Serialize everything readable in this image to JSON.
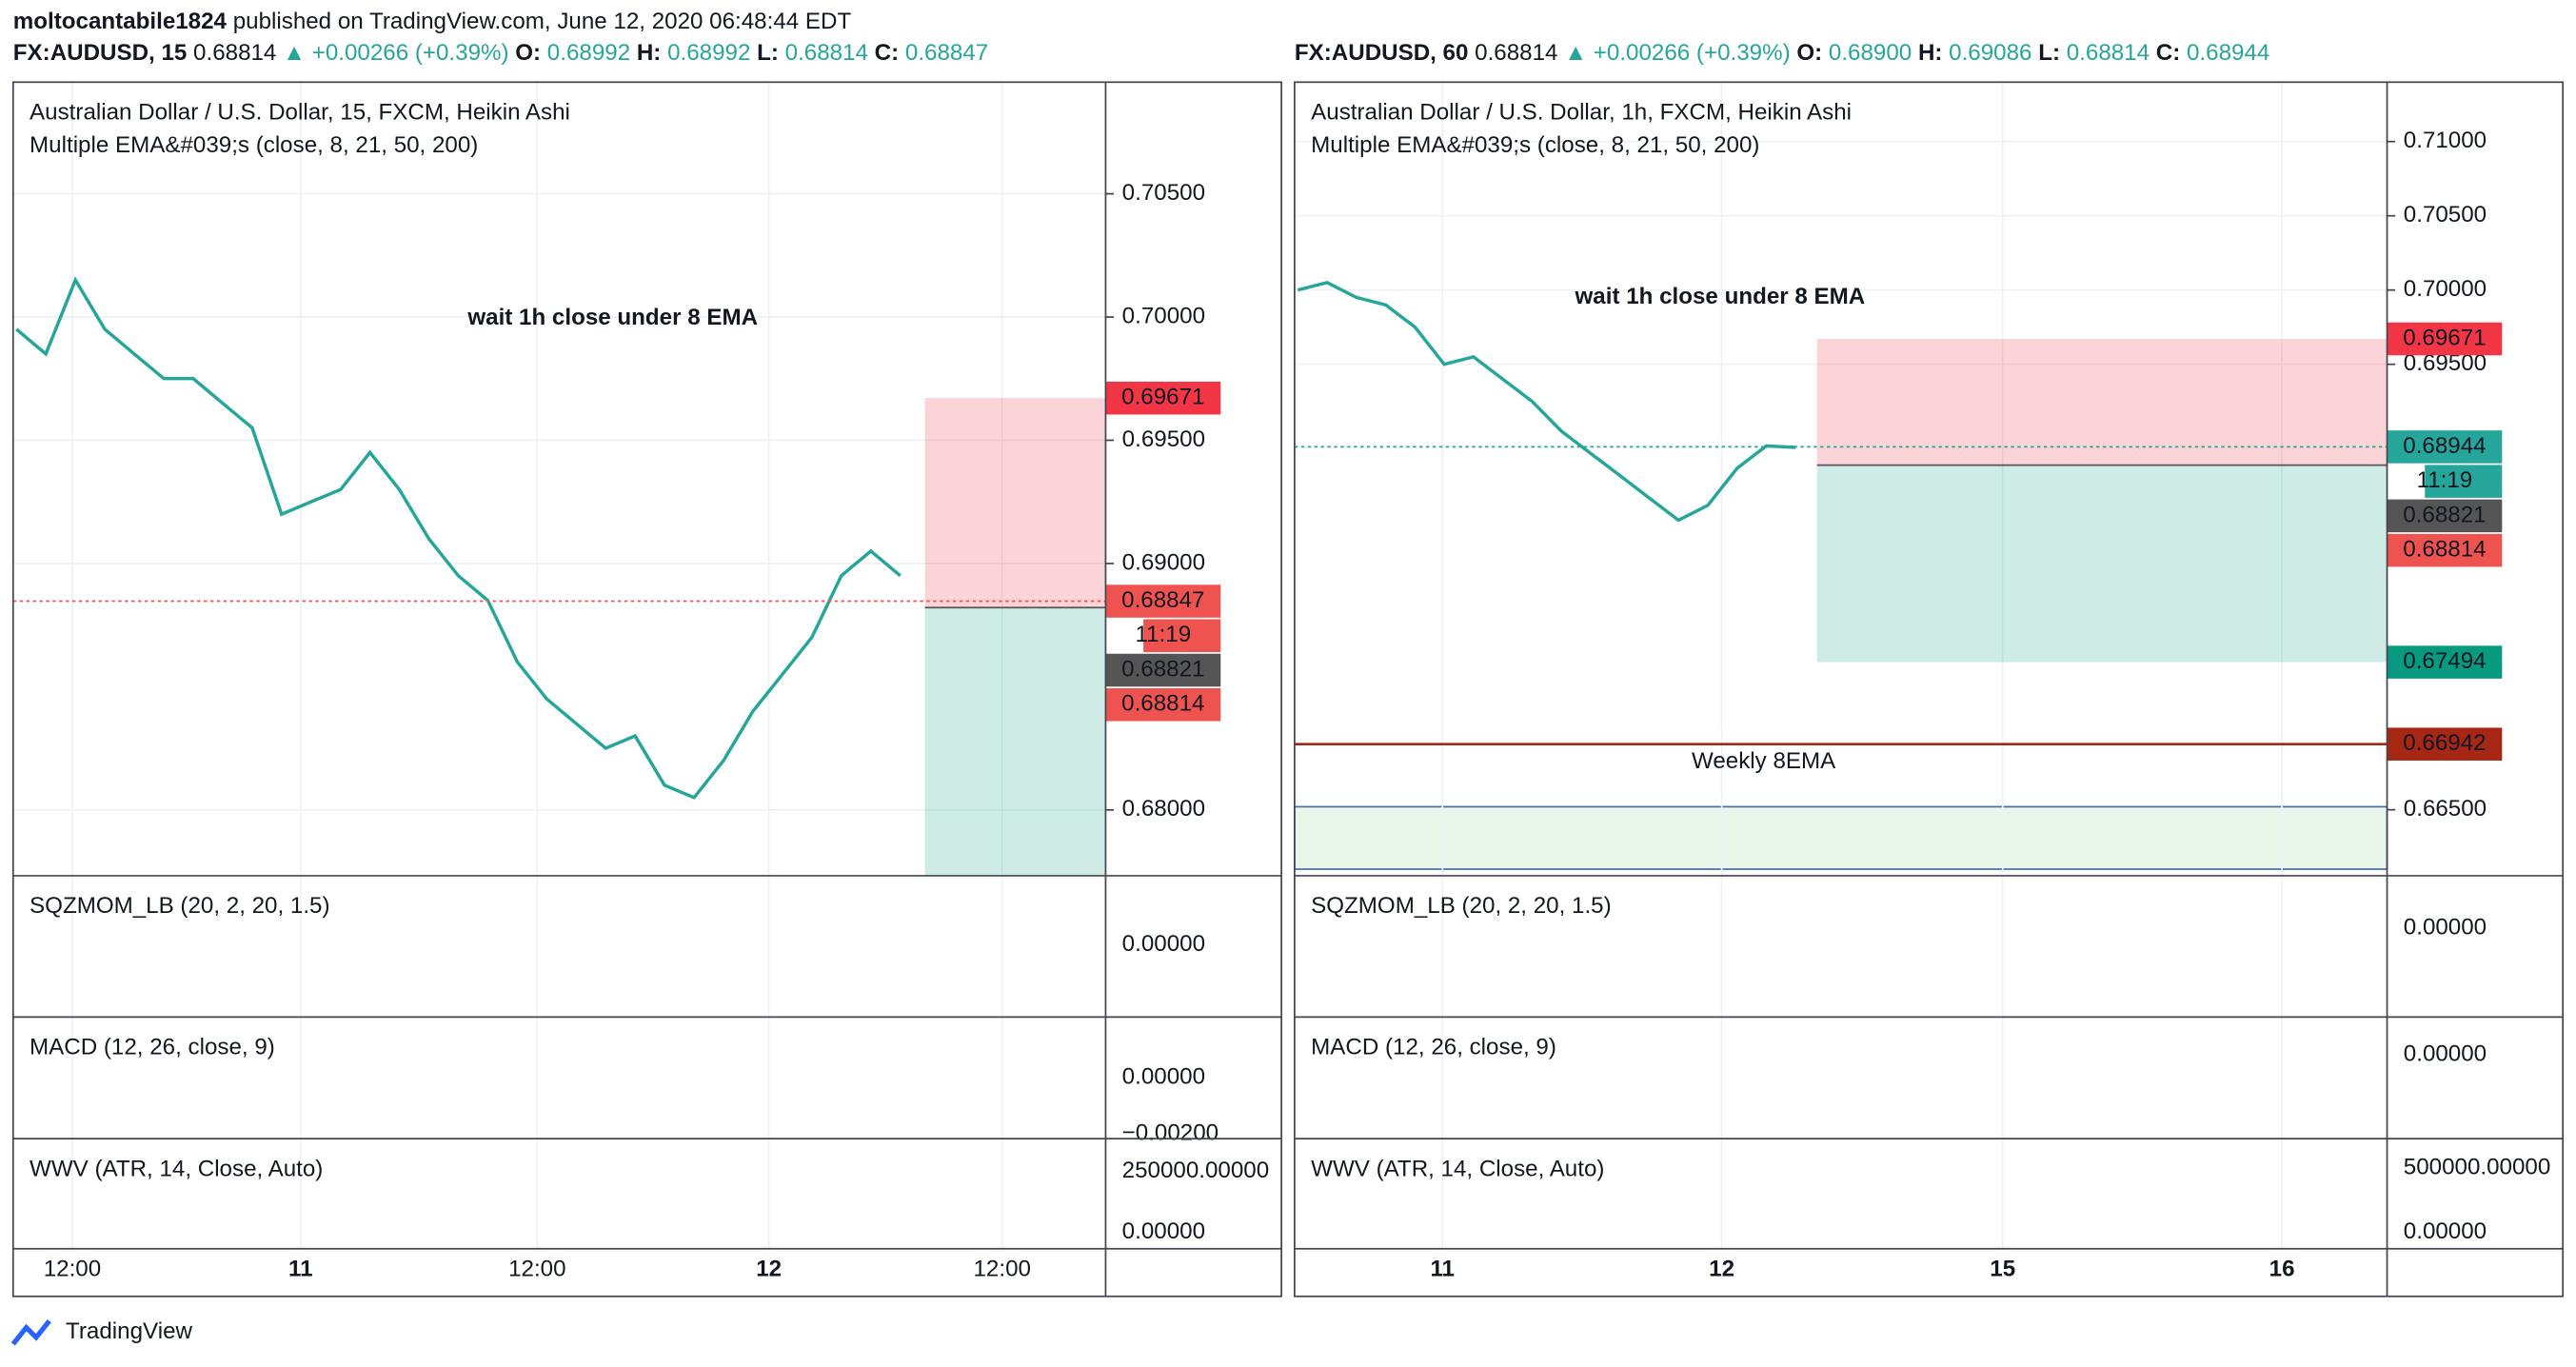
{
  "header": {
    "author": "moltocantabile1824",
    "published": "published on TradingView.com, June 12, 2020 06:48:44 EDT"
  },
  "footer": "TradingView",
  "chart_data": [
    {
      "type": "line",
      "quote": {
        "symbol": "FX:AUDUSD, 15",
        "last": "0.68814",
        "change": "▲ +0.00266 (+0.39%)",
        "ohlc": [
          {
            "key": "O:",
            "value": "0.68992"
          },
          {
            "key": "H:",
            "value": "0.68992"
          },
          {
            "key": "L:",
            "value": "0.68814"
          },
          {
            "key": "C:",
            "value": "0.68847"
          }
        ]
      },
      "title": "Australian Dollar / U.S. Dollar, 15, FXCM, Heikin Ashi",
      "subtitle": "Multiple EMA&#039;s (close, 8, 21, 50, 200)",
      "annotation": "wait 1h close under 8 EMA",
      "color": "#26a69a",
      "values": [
        0.6995,
        0.6985,
        0.7015,
        0.6995,
        0.6985,
        0.6975,
        0.6975,
        0.6965,
        0.6955,
        0.692,
        0.6925,
        0.693,
        0.6945,
        0.693,
        0.691,
        0.6895,
        0.6885,
        0.686,
        0.6845,
        0.6835,
        0.6825,
        0.683,
        0.681,
        0.6805,
        0.682,
        0.684,
        0.6855,
        0.687,
        0.6895,
        0.6905,
        0.6895
      ],
      "ylim": [
        0.67733,
        0.70953
      ],
      "yticks": [
        {
          "value": 0.705,
          "label": "0.70500"
        },
        {
          "value": 0.7,
          "label": "0.70000"
        },
        {
          "value": 0.695,
          "label": "0.69500"
        },
        {
          "value": 0.69,
          "label": "0.69000"
        },
        {
          "value": 0.68,
          "label": "0.68000"
        }
      ],
      "position": {
        "stop": 0.69671,
        "entry": 0.68821
      },
      "price_labels": [
        {
          "value": 0.69671,
          "label": "0.69671",
          "color": "#f23645"
        },
        {
          "value": 0.68847,
          "label": "0.68847",
          "color": "#ef5350"
        },
        {
          "label": "11:19",
          "color": "#ef5350"
        },
        {
          "value": 0.68821,
          "label": "0.68821",
          "color": "#555555"
        },
        {
          "value": 0.68814,
          "label": "0.68814",
          "color": "#ef5350"
        }
      ],
      "xtick_labels": [
        "12:00",
        "11",
        "12:00",
        "12",
        "12:00"
      ],
      "indicators": [
        {
          "label": "SQZMOM_LB (20, 2, 20, 1.5)",
          "ticks": [
            {
              "value": 0,
              "label": "0.00000"
            }
          ]
        },
        {
          "label": "MACD (12, 26, close, 9)",
          "ticks": [
            {
              "value": 0,
              "label": "0.00000"
            },
            {
              "value": -0.002,
              "label": "−0.00200"
            }
          ]
        },
        {
          "label": "WWV (ATR, 14, Close, Auto)",
          "ticks": [
            {
              "value": 250000,
              "label": "250000.00000"
            },
            {
              "value": 0,
              "label": "0.00000"
            }
          ]
        }
      ]
    },
    {
      "type": "line",
      "quote": {
        "symbol": "FX:AUDUSD, 60",
        "last": "0.68814",
        "change": "▲ +0.00266 (+0.39%)",
        "ohlc": [
          {
            "key": "O:",
            "value": "0.68900"
          },
          {
            "key": "H:",
            "value": "0.69086"
          },
          {
            "key": "L:",
            "value": "0.68814"
          },
          {
            "key": "C:",
            "value": "0.68944"
          }
        ]
      },
      "title": "Australian Dollar / U.S. Dollar, 1h, FXCM, Heikin Ashi",
      "subtitle": "Multiple EMA&#039;s (close, 8, 21, 50, 200)",
      "annotation": "wait 1h close under 8 EMA",
      "level_label": "Weekly 8EMA",
      "color": "#26a69a",
      "values": [
        0.7,
        0.7005,
        0.6995,
        0.699,
        0.6975,
        0.695,
        0.6955,
        0.694,
        0.6925,
        0.6905,
        0.689,
        0.6875,
        0.686,
        0.6845,
        0.6855,
        0.688,
        0.6895,
        0.6894
      ],
      "ylim": [
        0.66089,
        0.714
      ],
      "yticks": [
        {
          "value": 0.71,
          "label": "0.71000"
        },
        {
          "value": 0.705,
          "label": "0.70500"
        },
        {
          "value": 0.7,
          "label": "0.70000"
        },
        {
          "value": 0.695,
          "label": "0.69500"
        },
        {
          "value": 0.665,
          "label": "0.66500"
        }
      ],
      "position": {
        "stop": 0.69671,
        "entry": 0.68821,
        "target": 0.67494
      },
      "level": 0.66942,
      "price_labels": [
        {
          "value": 0.69671,
          "label": "0.69671",
          "color": "#f23645"
        },
        {
          "value": 0.68944,
          "label": "0.68944",
          "color": "#26a69a"
        },
        {
          "label": "11:19",
          "color": "#26a69a"
        },
        {
          "value": 0.68821,
          "label": "0.68821",
          "color": "#555555"
        },
        {
          "value": 0.68814,
          "label": "0.68814",
          "color": "#ef5350"
        },
        {
          "value": 0.67494,
          "label": "0.67494",
          "color": "#089981"
        },
        {
          "value": 0.66942,
          "label": "0.66942",
          "color": "#a52714"
        }
      ],
      "xtick_labels": [
        "11",
        "12",
        "15",
        "16"
      ],
      "indicators": [
        {
          "label": "SQZMOM_LB (20, 2, 20, 1.5)",
          "ticks": [
            {
              "value": 0,
              "label": "0.00000"
            }
          ]
        },
        {
          "label": "MACD (12, 26, close, 9)",
          "ticks": [
            {
              "value": 0,
              "label": "0.00000"
            }
          ]
        },
        {
          "label": "WWV (ATR, 14, Close, Auto)",
          "ticks": [
            {
              "value": 500000,
              "label": "500000.00000"
            },
            {
              "value": 0,
              "label": "0.00000"
            }
          ]
        }
      ]
    }
  ]
}
